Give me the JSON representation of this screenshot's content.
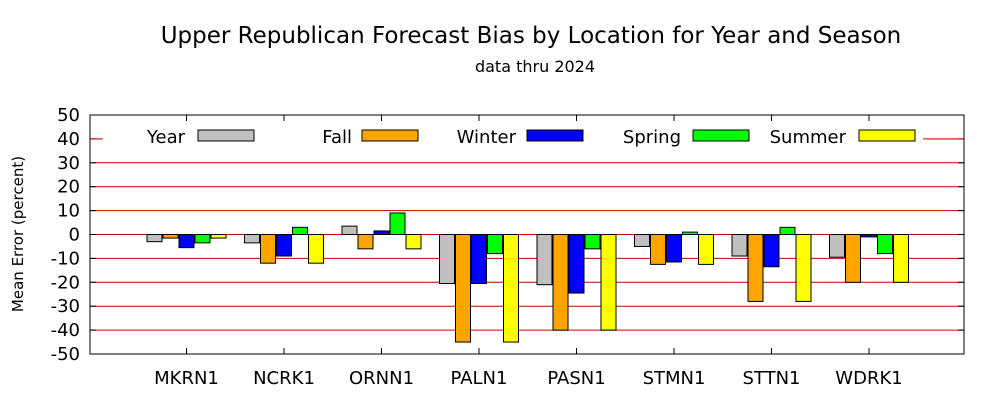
{
  "chart_data": {
    "type": "bar",
    "title": "Upper Republican Forecast Bias by Location for Year and Season",
    "subtitle": "data thru 2024",
    "xlabel": "",
    "ylabel": "Mean Error (percent)",
    "ylim": [
      -50,
      50
    ],
    "yticks": [
      50,
      40,
      30,
      20,
      10,
      0,
      -10,
      -20,
      -30,
      -40,
      -50
    ],
    "grid": true,
    "legend_position": "top",
    "categories": [
      "MKRN1",
      "NCRK1",
      "ORNN1",
      "PALN1",
      "PASN1",
      "STMN1",
      "STTN1",
      "WDRK1"
    ],
    "series": [
      {
        "name": "Year",
        "color": "#c0c0c0",
        "values": [
          -3,
          -3.5,
          3.5,
          -20.5,
          -21,
          -5,
          -9,
          -9.5
        ]
      },
      {
        "name": "Fall",
        "color": "#ffa500",
        "values": [
          -1.5,
          -12,
          -6,
          -45,
          -40,
          -12.5,
          -28,
          -20
        ]
      },
      {
        "name": "Winter",
        "color": "#0000ff",
        "values": [
          -5.5,
          -9,
          1.5,
          -20.5,
          -24.5,
          -11.5,
          -13.5,
          -1
        ]
      },
      {
        "name": "Spring",
        "color": "#00ff00",
        "values": [
          -3.5,
          3,
          9,
          -8,
          -6,
          1,
          3,
          -8
        ]
      },
      {
        "name": "Summer",
        "color": "#ffff00",
        "values": [
          -1.5,
          -12,
          -6,
          -45,
          -40,
          -12.5,
          -28,
          -20
        ]
      }
    ]
  },
  "colors": {
    "gridline": "#cc0000",
    "axis": "#000000"
  }
}
